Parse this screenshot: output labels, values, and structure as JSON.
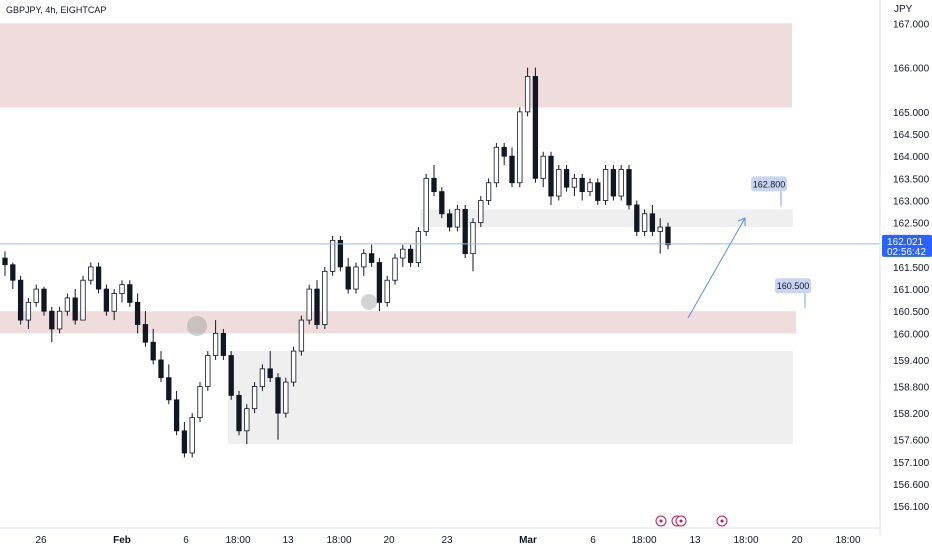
{
  "header": {
    "title": "GBPJPY, 4h, EIGHTCAP"
  },
  "currency": "JPY",
  "colors": {
    "up": "#ffffff",
    "down": "#131722",
    "wick": "#131722",
    "supply_zone": "#efdcdc",
    "grey_zone": "#efefef",
    "current_line": "#9bb8f0",
    "current_tag": "#2962ff",
    "target_label": "#c8d4f2",
    "arrow": "#5b8def",
    "event_icon": "#c2185b"
  },
  "current_price": {
    "value": "162.021",
    "countdown": "02:56:42"
  },
  "chart_data": {
    "type": "candlestick",
    "title": "GBPJPY, 4h, EIGHTCAP",
    "y_axis_labels": [
      "167.000",
      "166.000",
      "165.000",
      "164.500",
      "164.000",
      "163.500",
      "163.000",
      "162.500",
      "161.500",
      "161.000",
      "160.500",
      "160.000",
      "159.400",
      "158.800",
      "158.200",
      "157.600",
      "157.100",
      "156.600",
      "156.100"
    ],
    "x_axis_labels": [
      "26",
      "Feb",
      "6",
      "18:00",
      "13",
      "18:00",
      "20",
      "23",
      "Mar",
      "6",
      "18:00",
      "13",
      "18:00",
      "20",
      "18:00"
    ],
    "ylim": [
      155.9,
      167.3
    ],
    "zones": [
      {
        "type": "supply",
        "from": 165.1,
        "to": 167.0
      },
      {
        "type": "supply",
        "from": 160.0,
        "to": 160.5
      },
      {
        "type": "grey",
        "from": 162.4,
        "to": 162.8
      },
      {
        "type": "grey",
        "from": 157.5,
        "to": 159.6
      }
    ],
    "targets": [
      {
        "label": "162.800",
        "price": 162.8
      },
      {
        "label": "160.500",
        "price": 160.5
      }
    ],
    "candles": [
      [
        161.7,
        161.85,
        161.3,
        161.55
      ],
      [
        161.55,
        161.6,
        161.0,
        161.2
      ],
      [
        161.2,
        161.3,
        160.2,
        160.3
      ],
      [
        160.3,
        160.8,
        160.1,
        160.7
      ],
      [
        160.7,
        161.1,
        160.6,
        161.0
      ],
      [
        161.0,
        161.05,
        160.4,
        160.5
      ],
      [
        160.5,
        160.6,
        159.8,
        160.1
      ],
      [
        160.1,
        160.6,
        160.0,
        160.5
      ],
      [
        160.5,
        160.9,
        160.4,
        160.8
      ],
      [
        160.8,
        161.0,
        160.2,
        160.3
      ],
      [
        160.3,
        161.3,
        160.3,
        161.2
      ],
      [
        161.2,
        161.6,
        161.1,
        161.5
      ],
      [
        161.5,
        161.6,
        160.9,
        161.0
      ],
      [
        161.0,
        161.1,
        160.4,
        160.5
      ],
      [
        160.5,
        161.0,
        160.3,
        160.9
      ],
      [
        160.9,
        161.2,
        160.7,
        161.1
      ],
      [
        161.1,
        161.2,
        160.6,
        160.7
      ],
      [
        160.7,
        160.9,
        160.0,
        160.2
      ],
      [
        160.2,
        160.5,
        159.7,
        159.8
      ],
      [
        159.8,
        160.1,
        159.3,
        159.4
      ],
      [
        159.4,
        159.6,
        158.9,
        159.0
      ],
      [
        159.0,
        159.3,
        158.4,
        158.5
      ],
      [
        158.5,
        158.7,
        157.7,
        157.8
      ],
      [
        157.8,
        158.0,
        157.2,
        157.3
      ],
      [
        157.3,
        158.2,
        157.2,
        158.1
      ],
      [
        158.1,
        158.9,
        158.0,
        158.8
      ],
      [
        158.8,
        159.6,
        158.7,
        159.5
      ],
      [
        159.5,
        160.3,
        159.4,
        160.0
      ],
      [
        160.0,
        160.1,
        159.4,
        159.5
      ],
      [
        159.5,
        159.6,
        158.5,
        158.6
      ],
      [
        158.6,
        158.7,
        157.7,
        157.8
      ],
      [
        157.8,
        158.4,
        157.5,
        158.3
      ],
      [
        158.3,
        158.9,
        158.2,
        158.8
      ],
      [
        158.8,
        159.3,
        158.7,
        159.2
      ],
      [
        159.2,
        159.6,
        158.9,
        159.0
      ],
      [
        159.0,
        159.1,
        157.6,
        158.2
      ],
      [
        158.2,
        159.0,
        158.1,
        158.9
      ],
      [
        158.9,
        159.7,
        158.8,
        159.6
      ],
      [
        159.6,
        160.4,
        159.5,
        160.3
      ],
      [
        160.3,
        161.1,
        160.2,
        161.0
      ],
      [
        161.0,
        161.2,
        160.1,
        160.2
      ],
      [
        160.2,
        161.5,
        160.1,
        161.4
      ],
      [
        161.4,
        162.2,
        161.3,
        162.1
      ],
      [
        162.1,
        162.2,
        161.4,
        161.5
      ],
      [
        161.5,
        161.7,
        160.9,
        161.0
      ],
      [
        161.0,
        161.6,
        160.9,
        161.5
      ],
      [
        161.5,
        161.9,
        161.3,
        161.8
      ],
      [
        161.8,
        162.0,
        161.5,
        161.6
      ],
      [
        161.6,
        161.7,
        160.5,
        160.7
      ],
      [
        160.7,
        161.3,
        160.6,
        161.2
      ],
      [
        161.2,
        161.8,
        161.1,
        161.7
      ],
      [
        161.7,
        162.0,
        161.5,
        161.9
      ],
      [
        161.9,
        162.0,
        161.5,
        161.6
      ],
      [
        161.6,
        162.4,
        161.5,
        162.3
      ],
      [
        162.3,
        163.6,
        162.2,
        163.5
      ],
      [
        163.5,
        163.8,
        163.1,
        163.2
      ],
      [
        163.2,
        163.3,
        162.6,
        162.7
      ],
      [
        162.7,
        162.8,
        162.3,
        162.4
      ],
      [
        162.4,
        162.9,
        162.3,
        162.8
      ],
      [
        162.8,
        162.9,
        161.7,
        161.8
      ],
      [
        161.8,
        162.6,
        161.4,
        162.5
      ],
      [
        162.5,
        163.1,
        162.4,
        163.0
      ],
      [
        163.0,
        163.5,
        162.9,
        163.4
      ],
      [
        163.4,
        164.3,
        163.3,
        164.2
      ],
      [
        164.2,
        164.3,
        163.8,
        164.0
      ],
      [
        164.0,
        164.2,
        163.3,
        163.4
      ],
      [
        163.4,
        165.1,
        163.3,
        165.0
      ],
      [
        165.0,
        166.0,
        164.9,
        165.8
      ],
      [
        165.8,
        166.0,
        163.4,
        163.5
      ],
      [
        163.5,
        164.1,
        163.3,
        164.0
      ],
      [
        164.0,
        164.1,
        162.9,
        163.1
      ],
      [
        163.1,
        163.8,
        163.0,
        163.7
      ],
      [
        163.7,
        163.8,
        163.2,
        163.3
      ],
      [
        163.3,
        163.6,
        163.1,
        163.5
      ],
      [
        163.5,
        163.6,
        163.0,
        163.2
      ],
      [
        163.2,
        163.5,
        163.1,
        163.4
      ],
      [
        163.4,
        163.5,
        162.9,
        163.0
      ],
      [
        163.0,
        163.8,
        162.9,
        163.7
      ],
      [
        163.7,
        163.8,
        163.0,
        163.1
      ],
      [
        163.1,
        163.8,
        163.0,
        163.7
      ],
      [
        163.7,
        163.8,
        162.8,
        162.9
      ],
      [
        162.9,
        163.0,
        162.2,
        162.3
      ],
      [
        162.3,
        162.8,
        162.2,
        162.7
      ],
      [
        162.7,
        162.9,
        162.2,
        162.3
      ],
      [
        162.3,
        162.6,
        161.8,
        162.4
      ],
      [
        162.4,
        162.5,
        161.9,
        162.0
      ]
    ]
  }
}
